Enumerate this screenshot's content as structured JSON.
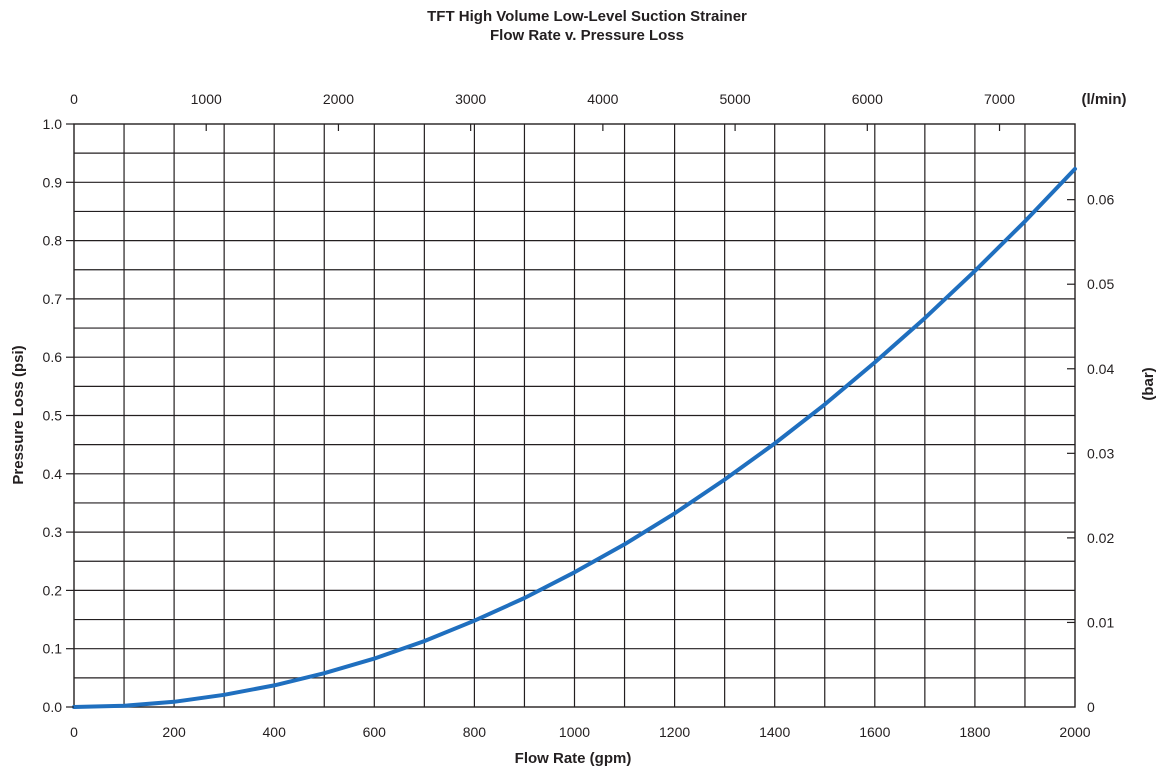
{
  "chart_data": {
    "type": "line",
    "title": "TFT High Volume Low-Level Suction Strainer",
    "subtitle": "Flow Rate v. Pressure Loss",
    "xlabel": "Flow Rate (gpm)",
    "ylabel": "Pressure Loss (psi)",
    "x2label": "(l/min)",
    "y2label": "(bar)",
    "xlim": [
      0,
      2000
    ],
    "ylim": [
      0,
      1.0
    ],
    "x_ticks": [
      "0",
      "200",
      "400",
      "600",
      "800",
      "1000",
      "1200",
      "1400",
      "1600",
      "1800",
      "2000"
    ],
    "y_ticks": [
      "0.0",
      "0.1",
      "0.2",
      "0.3",
      "0.4",
      "0.5",
      "0.6",
      "0.7",
      "0.8",
      "0.9",
      "1.0"
    ],
    "x2_ticks": [
      "0",
      "1000",
      "2000",
      "3000",
      "4000",
      "5000",
      "6000",
      "7000"
    ],
    "x2_tick_values_lpm": [
      0,
      1000,
      2000,
      3000,
      4000,
      5000,
      6000,
      7000
    ],
    "y2_ticks": [
      "0",
      "0.01",
      "0.02",
      "0.03",
      "0.04",
      "0.05",
      "0.06"
    ],
    "y2_tick_values_bar": [
      0,
      0.01,
      0.02,
      0.03,
      0.04,
      0.05,
      0.06
    ],
    "grid": true,
    "line_color": "#1f6fbf",
    "series": [
      {
        "x": [
          0,
          100,
          200,
          300,
          400,
          500,
          600,
          700,
          800,
          900,
          1000,
          1100,
          1200,
          1300,
          1400,
          1500,
          1600,
          1700,
          1800,
          1900,
          2000
        ],
        "values": [
          0.0,
          0.002,
          0.009,
          0.021,
          0.037,
          0.058,
          0.083,
          0.113,
          0.148,
          0.187,
          0.231,
          0.279,
          0.332,
          0.39,
          0.452,
          0.519,
          0.591,
          0.667,
          0.748,
          0.833,
          0.923
        ]
      }
    ]
  }
}
